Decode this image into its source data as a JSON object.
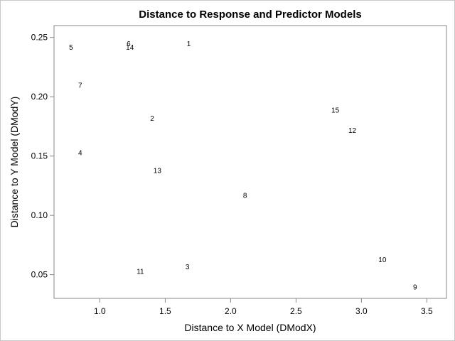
{
  "chart_data": {
    "type": "scatter",
    "title": "Distance to Response and Predictor Models",
    "xlabel": "Distance to X Model (DModX)",
    "ylabel": "Distance to Y Model (DModY)",
    "xlim": [
      0.65,
      3.65
    ],
    "ylim": [
      0.03,
      0.26
    ],
    "xticks": [
      1.0,
      1.5,
      2.0,
      2.5,
      3.0,
      3.5
    ],
    "xtick_labels": [
      "1.0",
      "1.5",
      "2.0",
      "2.5",
      "3.0",
      "3.5"
    ],
    "yticks": [
      0.05,
      0.1,
      0.15,
      0.2,
      0.25
    ],
    "ytick_labels": [
      "0.05",
      "0.10",
      "0.15",
      "0.20",
      "0.25"
    ],
    "grid": false,
    "marker": "label",
    "points": [
      {
        "label": "1",
        "x": 1.68,
        "y": 0.245
      },
      {
        "label": "2",
        "x": 1.4,
        "y": 0.182
      },
      {
        "label": "3",
        "x": 1.67,
        "y": 0.057
      },
      {
        "label": "4",
        "x": 0.85,
        "y": 0.153
      },
      {
        "label": "5",
        "x": 0.78,
        "y": 0.242
      },
      {
        "label": "6",
        "x": 1.22,
        "y": 0.245
      },
      {
        "label": "7",
        "x": 0.85,
        "y": 0.21
      },
      {
        "label": "8",
        "x": 2.11,
        "y": 0.117
      },
      {
        "label": "9",
        "x": 3.41,
        "y": 0.04
      },
      {
        "label": "10",
        "x": 3.16,
        "y": 0.063
      },
      {
        "label": "11",
        "x": 1.31,
        "y": 0.053
      },
      {
        "label": "12",
        "x": 2.93,
        "y": 0.172
      },
      {
        "label": "13",
        "x": 1.44,
        "y": 0.138
      },
      {
        "label": "14",
        "x": 1.23,
        "y": 0.242
      },
      {
        "label": "15",
        "x": 2.8,
        "y": 0.189
      }
    ]
  }
}
